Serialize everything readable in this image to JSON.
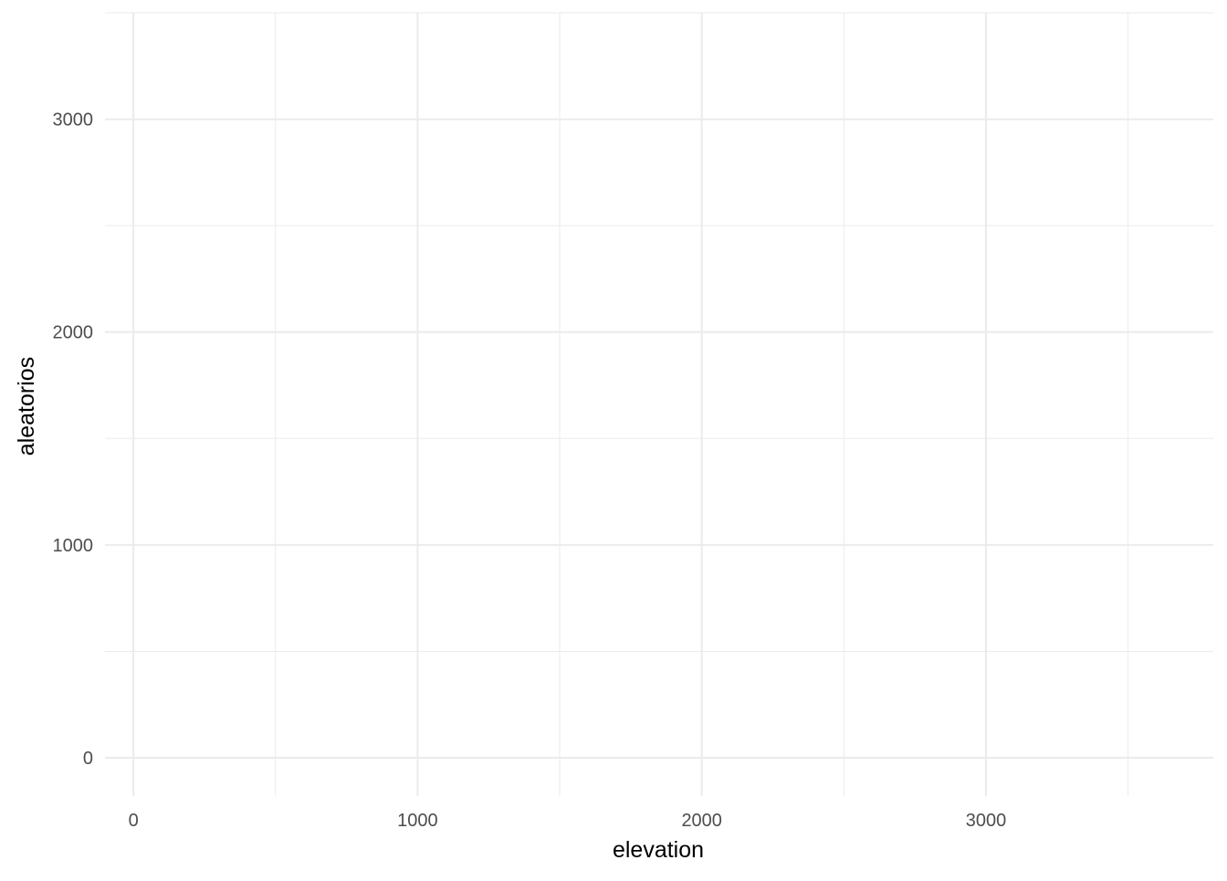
{
  "chart_data": {
    "type": "scatter",
    "title": "",
    "xlabel": "elevation",
    "ylabel": "aleatorios",
    "xlim": [
      -100,
      3800
    ],
    "ylim": [
      -180,
      3500
    ],
    "x_ticks": [
      0,
      1000,
      2000,
      3000
    ],
    "x_tick_labels": [
      "0",
      "1000",
      "2000",
      "3000"
    ],
    "x_minor": [
      500,
      1500,
      2500,
      3500
    ],
    "y_ticks": [
      0,
      1000,
      2000,
      3000
    ],
    "y_tick_labels": [
      "0",
      "1000",
      "2000",
      "3000"
    ],
    "y_minor": [
      500,
      1500,
      2500,
      3500
    ],
    "grid": true,
    "points": [],
    "colors": {
      "background": "#ffffff",
      "grid": "#ebebeb",
      "tick_text": "#4d4d4d",
      "axis_title": "#000000"
    }
  }
}
